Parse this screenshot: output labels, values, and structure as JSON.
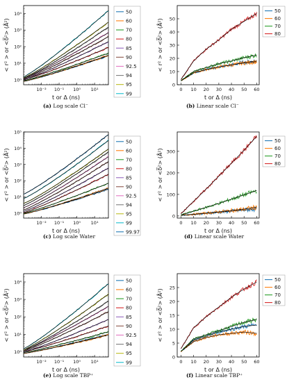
{
  "captions": [
    {
      "letter": "(a)",
      "text": "Log scale Cl⁻"
    },
    {
      "letter": "(b)",
      "text": "Linear scale Cl⁻"
    },
    {
      "letter": "(c)",
      "text": "Log scale Water"
    },
    {
      "letter": "(d)",
      "text": "Linear scale Water"
    },
    {
      "letter": "(e)",
      "text": "Log scale TBP⁺"
    },
    {
      "letter": "(f)",
      "text": "Linear scale TBP⁺"
    }
  ],
  "colors": {
    "50": "#1f77b4",
    "60": "#ff7f0e",
    "70": "#2ca02c",
    "80": "#d62728",
    "85": "#9467bd",
    "90": "#8c564b",
    "92.5": "#e377c2",
    "94": "#7f7f7f",
    "95": "#bcbd22",
    "99": "#17becf",
    "99.97": "#1f77b4"
  },
  "chart_data": [
    {
      "type": "line",
      "scale": "log",
      "xlabel": "t or Δ (ns)",
      "ylabel": "< r² >  or  <δ̅²> (Å²)",
      "xlim": [
        0.001,
        60
      ],
      "ylim": [
        0.5,
        30000
      ],
      "x_ticks": [
        "10⁻²",
        "10⁻¹",
        "10⁰",
        "10¹"
      ],
      "y_ticks": [
        "10⁰",
        "10¹",
        "10²",
        "10³",
        "10⁴"
      ],
      "legend": "right",
      "series": [
        {
          "name": "50",
          "y_start": 0.8,
          "y_end": 28
        },
        {
          "name": "60",
          "y_start": 0.8,
          "y_end": 30
        },
        {
          "name": "70",
          "y_start": 0.9,
          "y_end": 40
        },
        {
          "name": "80",
          "y_start": 1.0,
          "y_end": 90
        },
        {
          "name": "85",
          "y_start": 1.0,
          "y_end": 200
        },
        {
          "name": "90",
          "y_start": 1.1,
          "y_end": 400
        },
        {
          "name": "92.5",
          "y_start": 1.2,
          "y_end": 700
        },
        {
          "name": "94",
          "y_start": 1.2,
          "y_end": 1500
        },
        {
          "name": "95",
          "y_start": 1.3,
          "y_end": 3000
        },
        {
          "name": "99",
          "y_start": 1.5,
          "y_end": 15000
        }
      ]
    },
    {
      "type": "line",
      "scale": "linear",
      "xlabel": "t or Δ (ns)",
      "ylabel": "< r² >  or  <δ̅²> (Å²)",
      "xlim": [
        -3,
        62
      ],
      "ylim": [
        0,
        60
      ],
      "x_ticks": [
        0,
        10,
        20,
        30,
        40,
        50,
        60
      ],
      "y_ticks": [
        0,
        10,
        20,
        30,
        40,
        50
      ],
      "legend": "right",
      "series": [
        {
          "name": "50",
          "x": [
            0,
            10,
            20,
            30,
            40,
            50,
            60
          ],
          "y": [
            3,
            9,
            11.5,
            13.5,
            15,
            17,
            18
          ]
        },
        {
          "name": "60",
          "x": [
            0,
            10,
            20,
            30,
            40,
            50,
            60
          ],
          "y": [
            3,
            9,
            11.5,
            13.5,
            15,
            16.5,
            17.5
          ]
        },
        {
          "name": "70",
          "x": [
            0,
            10,
            20,
            30,
            40,
            50,
            60
          ],
          "y": [
            3,
            10,
            13,
            16,
            18,
            20.5,
            22.5
          ]
        },
        {
          "name": "80",
          "x": [
            0,
            10,
            20,
            30,
            40,
            50,
            60
          ],
          "y": [
            4,
            18,
            27,
            34,
            42,
            48,
            54
          ]
        }
      ]
    },
    {
      "type": "line",
      "scale": "log",
      "xlabel": "t or Δ (ns)",
      "ylabel": "< r² >  or  <δ̅²> (Å²)",
      "xlim": [
        0.001,
        60
      ],
      "ylim": [
        0.5,
        100000
      ],
      "x_ticks": [
        "10⁻²",
        "10⁻¹",
        "10⁰",
        "10¹"
      ],
      "y_ticks": [
        "10⁰",
        "10¹",
        "10²",
        "10³",
        "10⁴",
        "10⁵"
      ],
      "legend": "right",
      "series": [
        {
          "name": "50",
          "y_start": 0.9,
          "y_end": 30
        },
        {
          "name": "60",
          "y_start": 0.9,
          "y_end": 35
        },
        {
          "name": "70",
          "y_start": 1.0,
          "y_end": 70
        },
        {
          "name": "80",
          "y_start": 1.1,
          "y_end": 250
        },
        {
          "name": "85",
          "y_start": 1.3,
          "y_end": 600
        },
        {
          "name": "90",
          "y_start": 1.6,
          "y_end": 1500
        },
        {
          "name": "92.5",
          "y_start": 2.2,
          "y_end": 3000
        },
        {
          "name": "94",
          "y_start": 3,
          "y_end": 6000
        },
        {
          "name": "95",
          "y_start": 4,
          "y_end": 9000
        },
        {
          "name": "99",
          "y_start": 8,
          "y_end": 30000
        },
        {
          "name": "99.97",
          "y_start": 15,
          "y_end": 70000
        }
      ]
    },
    {
      "type": "line",
      "scale": "linear",
      "xlabel": "t or Δ (ns)",
      "ylabel": "< r² >  or  <δ̅²> (Å²)",
      "xlim": [
        -3,
        62
      ],
      "ylim": [
        -10,
        390
      ],
      "x_ticks": [
        0,
        10,
        20,
        30,
        40,
        50,
        60
      ],
      "y_ticks": [
        0,
        100,
        200,
        300
      ],
      "legend": "right",
      "series": [
        {
          "name": "50",
          "x": [
            0,
            10,
            20,
            30,
            40,
            50,
            60
          ],
          "y": [
            3,
            7,
            12,
            17,
            22,
            27,
            33
          ]
        },
        {
          "name": "60",
          "x": [
            0,
            10,
            20,
            30,
            40,
            50,
            60
          ],
          "y": [
            3,
            8,
            13,
            19,
            25,
            32,
            40
          ]
        },
        {
          "name": "70",
          "x": [
            0,
            10,
            20,
            30,
            40,
            50,
            60
          ],
          "y": [
            5,
            22,
            40,
            58,
            78,
            98,
            118
          ]
        },
        {
          "name": "80",
          "x": [
            0,
            10,
            20,
            30,
            40,
            50,
            60
          ],
          "y": [
            10,
            68,
            125,
            185,
            245,
            305,
            370
          ]
        }
      ]
    },
    {
      "type": "line",
      "scale": "log",
      "xlabel": "t or Δ (ns)",
      "ylabel": "< r² >  or  <δ̅²> (Å²)",
      "xlim": [
        0.001,
        60
      ],
      "ylim": [
        0.5,
        30000
      ],
      "x_ticks": [
        "10⁻²",
        "10⁻¹",
        "10⁰",
        "10¹"
      ],
      "y_ticks": [
        "10⁰",
        "10¹",
        "10²",
        "10³",
        "10⁴"
      ],
      "legend": "right",
      "series": [
        {
          "name": "50",
          "y_start": 0.8,
          "y_end": 10
        },
        {
          "name": "60",
          "y_start": 0.8,
          "y_end": 9
        },
        {
          "name": "70",
          "y_start": 0.9,
          "y_end": 14
        },
        {
          "name": "80",
          "y_start": 1.0,
          "y_end": 30
        },
        {
          "name": "85",
          "y_start": 1.0,
          "y_end": 70
        },
        {
          "name": "90",
          "y_start": 1.1,
          "y_end": 200
        },
        {
          "name": "92.5",
          "y_start": 1.2,
          "y_end": 400
        },
        {
          "name": "94",
          "y_start": 1.2,
          "y_end": 800
        },
        {
          "name": "95",
          "y_start": 1.3,
          "y_end": 2000
        },
        {
          "name": "99",
          "y_start": 1.5,
          "y_end": 8000
        }
      ]
    },
    {
      "type": "line",
      "scale": "linear",
      "xlabel": "t or Δ (ns)",
      "ylabel": "< r² >  or  <δ̅²> (Å²)",
      "xlim": [
        -3,
        62
      ],
      "ylim": [
        0,
        30
      ],
      "x_ticks": [
        0,
        10,
        20,
        30,
        40,
        50,
        60
      ],
      "y_ticks": [
        0,
        5,
        10,
        15,
        20,
        25
      ],
      "legend": "right",
      "series": [
        {
          "name": "50",
          "x": [
            0,
            10,
            20,
            30,
            40,
            50,
            60
          ],
          "y": [
            2,
            6,
            7.5,
            9,
            10,
            11,
            11.5
          ]
        },
        {
          "name": "60",
          "x": [
            0,
            10,
            20,
            30,
            40,
            50,
            60
          ],
          "y": [
            2,
            5.5,
            7,
            8,
            8.5,
            9,
            8.5
          ]
        },
        {
          "name": "70",
          "x": [
            0,
            10,
            20,
            30,
            40,
            50,
            60
          ],
          "y": [
            2,
            6.5,
            8,
            9.5,
            11,
            12.5,
            13.5
          ]
        },
        {
          "name": "80",
          "x": [
            0,
            10,
            20,
            30,
            40,
            50,
            60
          ],
          "y": [
            3,
            10.5,
            14.5,
            18,
            21.5,
            24.5,
            27
          ]
        }
      ]
    }
  ]
}
